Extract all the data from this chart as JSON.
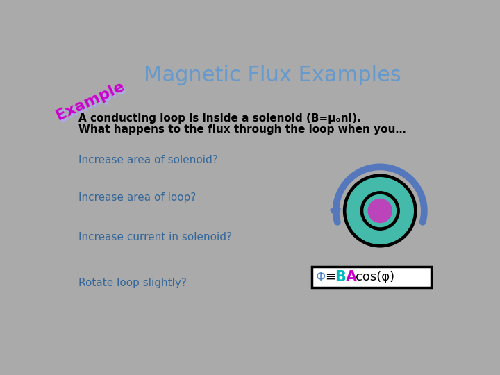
{
  "bg_color": "#aaaaaa",
  "title": "Magnetic Flux Examples",
  "title_color": "#6699cc",
  "title_fontsize": 22,
  "example_text": "Example",
  "example_color": "#cc00cc",
  "example_shadow_color": "#aaaaff",
  "body_text_color": "#000000",
  "question_color": "#336699",
  "intro_line1": "A conducting loop is inside a solenoid (B=μₒnI).",
  "intro_line2": "What happens to the flux through the loop when you…",
  "questions": [
    "Increase area of solenoid?",
    "Increase area of loop?",
    "Increase current in solenoid?",
    "Rotate loop slightly?"
  ],
  "formula_phi_color": "#5588cc",
  "formula_B_color": "#00bbbb",
  "formula_A_color": "#cc00cc",
  "formula_rest_color": "#000000",
  "outer_ring_color": "#000000",
  "teal_color": "#44bbaa",
  "inner_circle_color": "#bb44bb",
  "arrow_color": "#5577bb"
}
